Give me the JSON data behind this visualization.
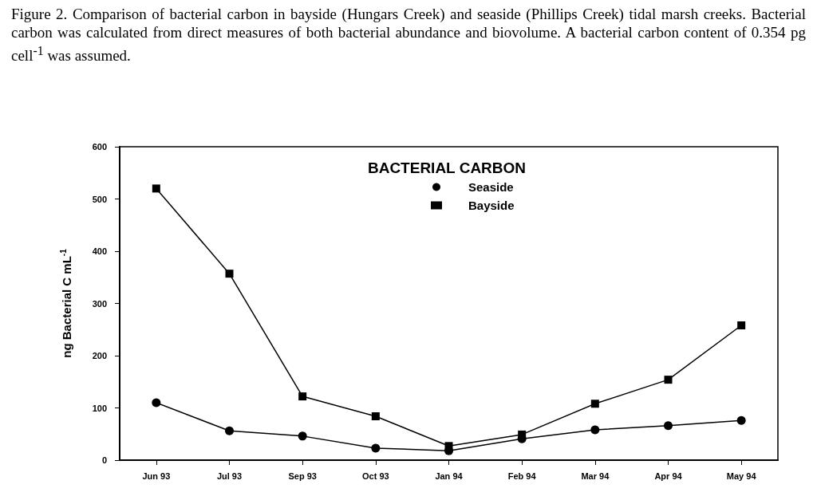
{
  "chart_data": {
    "type": "line",
    "title": "BACTERIAL CARBON",
    "annotations": [
      "Figure 2. Comparison of bacterial carbon in bayside (Hungars Creek) and seaside (Phillips Creek) tidal marsh creeks. Bacterial carbon was calculated from direct measures of both bacterial abundance and biovolume. A bacterial carbon content of 0.354 pg cell$^{-1}$ was assumed."
    ],
    "ylabel": "ng Bacterial C mL$^{-1}$",
    "categories": [
      "Jun 93",
      "Jul 93",
      "Sep 93",
      "Oct 93",
      "Jan 94",
      "Feb 94",
      "Mar 94",
      "Apr 94",
      "May 94"
    ],
    "series": [
      {
        "name": "Seaside",
        "color": "#000000",
        "marker": "circle",
        "values": [
          110,
          56,
          46,
          23,
          18,
          41,
          58,
          66,
          76
        ]
      },
      {
        "name": "Bayside",
        "color": "#000000",
        "marker": "square",
        "values": [
          520,
          357,
          122,
          84,
          27,
          49,
          108,
          154,
          258
        ]
      }
    ],
    "ylim": [
      0,
      600
    ],
    "yticks": [
      0,
      100,
      200,
      300,
      400,
      500,
      600
    ],
    "grid": false,
    "legend": "top",
    "line_style": "solid"
  }
}
